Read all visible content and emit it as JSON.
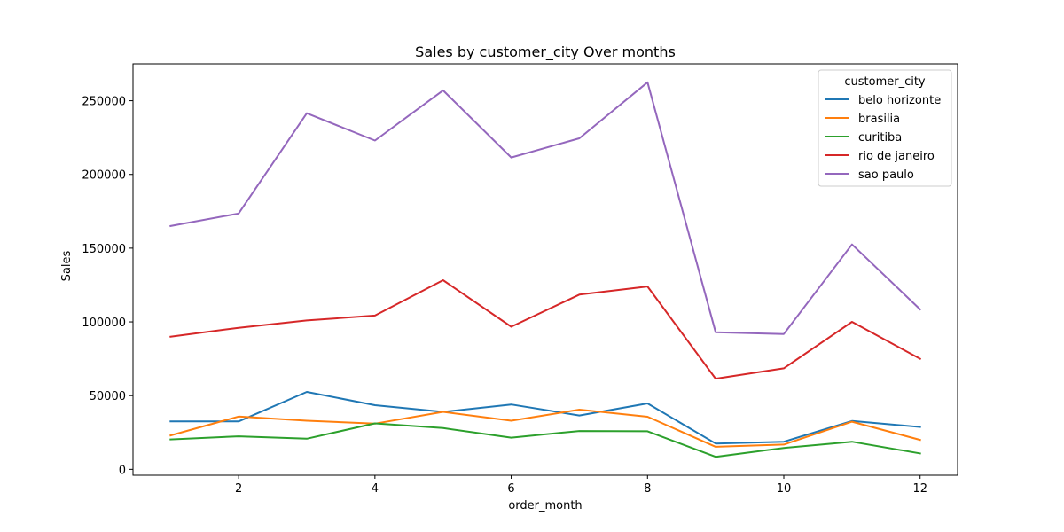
{
  "chart_data": {
    "type": "line",
    "title": "Sales by customer_city Over months",
    "xlabel": "order_month",
    "ylabel": "Sales",
    "x": [
      1,
      2,
      3,
      4,
      5,
      6,
      7,
      8,
      9,
      10,
      11,
      12
    ],
    "xlim": [
      0.45,
      12.55
    ],
    "ylim": [
      -4000,
      275000
    ],
    "xticks": [
      2,
      4,
      6,
      8,
      10,
      12
    ],
    "xtick_labels": [
      "2",
      "4",
      "6",
      "8",
      "10",
      "12"
    ],
    "yticks": [
      0,
      50000,
      100000,
      150000,
      200000,
      250000
    ],
    "ytick_labels": [
      "0",
      "50000",
      "100000",
      "150000",
      "200000",
      "250000"
    ],
    "grid": false,
    "legend": {
      "title": "customer_city",
      "placement": "top-right"
    },
    "series": [
      {
        "name": "belo horizonte",
        "color": "#1f77b4",
        "values": [
          32500,
          32500,
          52500,
          43500,
          39000,
          44000,
          36500,
          44700,
          17500,
          18700,
          32800,
          28700
        ]
      },
      {
        "name": "brasilia",
        "color": "#ff7f0e",
        "values": [
          23000,
          35800,
          33000,
          31000,
          39000,
          33000,
          40500,
          35700,
          15300,
          16800,
          32300,
          20000
        ]
      },
      {
        "name": "curitiba",
        "color": "#2ca02c",
        "values": [
          20300,
          22400,
          20800,
          31200,
          28000,
          21500,
          26000,
          25800,
          8500,
          14500,
          18700,
          10800
        ]
      },
      {
        "name": "rio de janeiro",
        "color": "#d62728",
        "values": [
          90000,
          96000,
          101000,
          104300,
          128300,
          96700,
          118500,
          124000,
          61500,
          68500,
          100000,
          75000
        ]
      },
      {
        "name": "sao paulo",
        "color": "#9467bd",
        "values": [
          165000,
          173500,
          241500,
          223000,
          257000,
          211500,
          224500,
          262500,
          93000,
          91800,
          152500,
          108500
        ]
      }
    ]
  }
}
